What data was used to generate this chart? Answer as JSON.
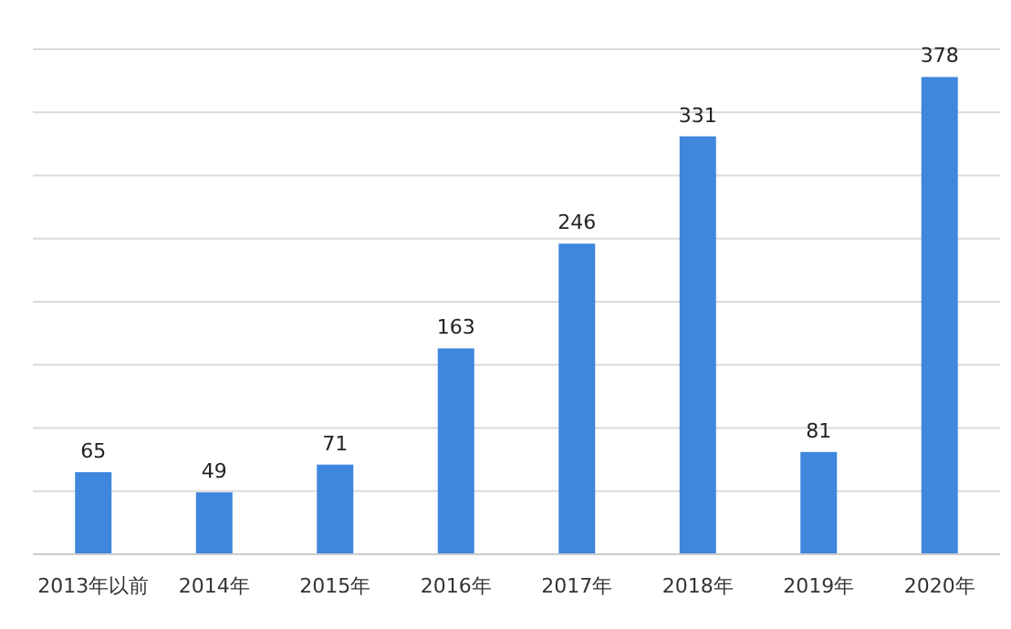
{
  "chart_data": {
    "type": "bar",
    "categories": [
      "2013年以前",
      "2014年",
      "2015年",
      "2016年",
      "2017年",
      "2018年",
      "2019年",
      "2020年"
    ],
    "values": [
      65,
      49,
      71,
      163,
      246,
      331,
      81,
      378
    ],
    "color": "#3f86dd",
    "ylim": [
      0,
      400
    ],
    "yticks": [
      {
        "value": 0,
        "label": null
      },
      {
        "value": 50,
        "label": null
      },
      {
        "value": 100,
        "label": null
      },
      {
        "value": 150,
        "label": null
      },
      {
        "value": 200,
        "label": null
      },
      {
        "value": 250,
        "label": null
      },
      {
        "value": 300,
        "label": null
      },
      {
        "value": 350,
        "label": null
      },
      {
        "value": 400,
        "label": null
      }
    ],
    "grid": "y",
    "data_labels": true,
    "tick_labels": "x"
  }
}
